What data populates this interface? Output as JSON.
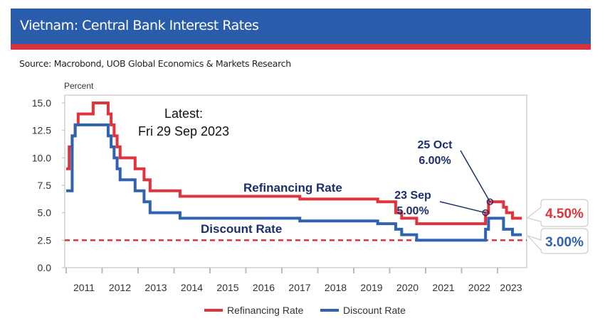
{
  "header": {
    "title": "Vietnam: Central Bank Interest Rates",
    "source": "Source: Macrobond, UOB Global Economics & Markets Research"
  },
  "colors": {
    "header_blue": "#2a5cac",
    "header_red": "#d9323f",
    "refinancing": "#e0333c",
    "discount": "#2f62b0",
    "annotation": "#1c2e6b"
  },
  "chart_data": {
    "type": "line",
    "step": true,
    "ylabel": "Percent",
    "ylim": [
      0,
      15.7
    ],
    "yticks": [
      "0.0",
      "2.5",
      "5.0",
      "7.5",
      "10.0",
      "12.5",
      "15.0"
    ],
    "xlim": [
      "2010-12",
      "2023-10"
    ],
    "xticks": [
      "2011",
      "2012",
      "2013",
      "2014",
      "2015",
      "2016",
      "2017",
      "2018",
      "2019",
      "2020",
      "2021",
      "2022",
      "2023"
    ],
    "grid": false,
    "legend_placement": "bottom",
    "reference_line": {
      "value": 2.5,
      "style": "dashed",
      "color": "#e0333c"
    },
    "series": [
      {
        "name": "Refinancing Rate",
        "color": "#e0333c",
        "end": "2023-09",
        "points": [
          [
            "2011-01",
            9
          ],
          [
            "2011-02",
            11
          ],
          [
            "2011-03",
            12
          ],
          [
            "2011-04",
            13
          ],
          [
            "2011-05",
            14
          ],
          [
            "2011-10",
            15
          ],
          [
            "2012-03",
            14
          ],
          [
            "2012-04",
            13
          ],
          [
            "2012-05",
            12
          ],
          [
            "2012-06",
            11
          ],
          [
            "2012-07",
            10
          ],
          [
            "2012-12",
            9
          ],
          [
            "2013-03",
            8
          ],
          [
            "2013-05",
            7
          ],
          [
            "2014-03",
            6.5
          ],
          [
            "2017-07",
            6.25
          ],
          [
            "2019-09",
            6
          ],
          [
            "2020-03",
            5
          ],
          [
            "2020-05",
            4.5
          ],
          [
            "2020-10",
            4
          ],
          [
            "2022-09",
            5
          ],
          [
            "2022-10",
            6
          ],
          [
            "2023-03",
            5.5
          ],
          [
            "2023-04",
            5
          ],
          [
            "2023-06",
            4.5
          ]
        ]
      },
      {
        "name": "Discount Rate",
        "color": "#2f62b0",
        "end": "2023-09",
        "points": [
          [
            "2011-01",
            7
          ],
          [
            "2011-03",
            12
          ],
          [
            "2011-04",
            13
          ],
          [
            "2012-03",
            12
          ],
          [
            "2012-04",
            11
          ],
          [
            "2012-05",
            10
          ],
          [
            "2012-06",
            9
          ],
          [
            "2012-07",
            8
          ],
          [
            "2012-12",
            7
          ],
          [
            "2013-03",
            6
          ],
          [
            "2013-05",
            5
          ],
          [
            "2014-03",
            4.5
          ],
          [
            "2017-07",
            4.25
          ],
          [
            "2019-09",
            4
          ],
          [
            "2020-03",
            3.5
          ],
          [
            "2020-05",
            3
          ],
          [
            "2020-10",
            2.5
          ],
          [
            "2022-09",
            3.5
          ],
          [
            "2022-10",
            4.5
          ],
          [
            "2023-03",
            3.5
          ],
          [
            "2023-06",
            3
          ]
        ]
      }
    ],
    "annotations": {
      "latest": [
        "Latest:",
        "Fri 29 Sep 2023"
      ],
      "refi_label": "Refinancing Rate",
      "disc_label": "Discount Rate",
      "oct": {
        "date": "2022-10",
        "value": 6,
        "lines": [
          "25 Oct",
          "6.00%"
        ]
      },
      "sep": {
        "date": "2022-09",
        "value": 5,
        "lines": [
          "23 Sep",
          "5.00%"
        ]
      },
      "end_refi": "4.50%",
      "end_disc": "3.00%"
    }
  }
}
